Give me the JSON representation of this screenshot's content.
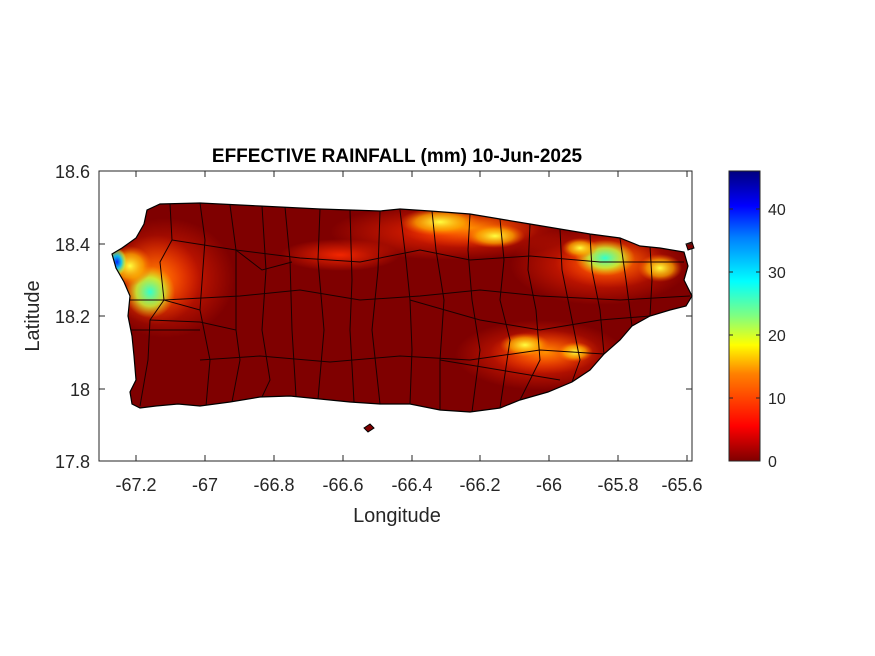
{
  "title": "EFFECTIVE RAINFALL (mm) 10-Jun-2025",
  "xlabel": "Longitude",
  "ylabel": "Latitude",
  "x_ticks": [
    "-67.2",
    "-67",
    "-66.8",
    "-66.6",
    "-66.4",
    "-66.2",
    "-66",
    "-65.8",
    "-65.6"
  ],
  "y_ticks": [
    "18.6",
    "18.4",
    "18.2",
    "18",
    "17.8"
  ],
  "colorbar": {
    "ticks": [
      "40",
      "30",
      "20",
      "10",
      "0"
    ],
    "range": [
      0,
      46
    ],
    "colormap": "jet",
    "colors": [
      "#7f0000",
      "#ff0000",
      "#ff8000",
      "#ffff00",
      "#80ff80",
      "#00ffff",
      "#0080ff",
      "#0000ff",
      "#00007f"
    ]
  },
  "chart_data": {
    "type": "heatmap",
    "title": "EFFECTIVE RAINFALL (mm) 10-Jun-2025",
    "xlabel": "Longitude",
    "ylabel": "Latitude",
    "xlim": [
      -67.3,
      -65.58
    ],
    "ylim": [
      17.8,
      18.6
    ],
    "color_range": [
      0,
      46
    ],
    "region": "Puerto Rico municipalities",
    "high_rainfall_areas": [
      {
        "lon": -67.26,
        "lat": 18.35,
        "value": 45
      },
      {
        "lon": -67.18,
        "lat": 18.28,
        "value": 28
      },
      {
        "lon": -65.86,
        "lat": 18.36,
        "value": 33
      },
      {
        "lon": -66.22,
        "lat": 18.46,
        "value": 16
      },
      {
        "lon": -66.05,
        "lat": 18.11,
        "value": 15
      },
      {
        "lon": -65.7,
        "lat": 18.33,
        "value": 14
      }
    ]
  }
}
